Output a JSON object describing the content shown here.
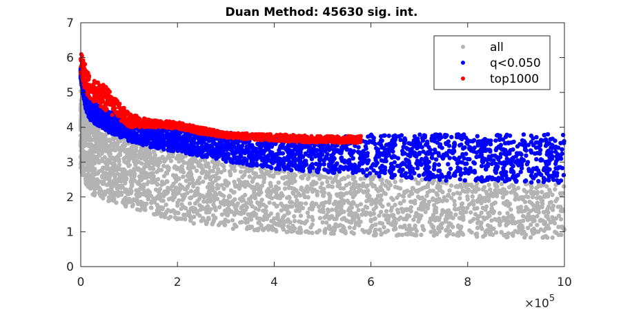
{
  "chart_data": {
    "type": "scatter",
    "title": "Duan Method: 45630 sig. int.",
    "xlabel": "",
    "ylabel": "",
    "xlim": [
      0,
      1000000
    ],
    "ylim": [
      0,
      7
    ],
    "x_ticks": [
      0,
      200000,
      400000,
      600000,
      800000,
      1000000
    ],
    "x_tick_labels": [
      "0",
      "2",
      "4",
      "6",
      "8",
      "10"
    ],
    "x_exponent_label": "×10",
    "x_exponent_power": "5",
    "y_ticks": [
      0,
      1,
      2,
      3,
      4,
      5,
      6,
      7
    ],
    "y_tick_labels": [
      "0",
      "1",
      "2",
      "3",
      "4",
      "5",
      "6",
      "7"
    ],
    "grid": false,
    "legend_position": "top-right",
    "series": [
      {
        "name": "all",
        "color": "#b3b3b3",
        "band_x": [
          0,
          10000,
          20000,
          50000,
          100000,
          150000,
          200000,
          300000,
          400000,
          500000,
          600000,
          700000,
          800000,
          900000,
          1000000
        ],
        "band_low": [
          2.8,
          2.4,
          2.1,
          1.9,
          1.7,
          1.5,
          1.3,
          1.1,
          1.0,
          0.95,
          0.9,
          0.85,
          0.85,
          0.83,
          0.82
        ],
        "band_high": [
          5.4,
          4.5,
          4.2,
          3.9,
          3.6,
          3.4,
          3.3,
          3.0,
          2.8,
          2.7,
          2.6,
          2.5,
          2.45,
          2.42,
          2.4
        ]
      },
      {
        "name": "q<0.050",
        "color": "#0000ff",
        "band_x": [
          0,
          10000,
          20000,
          50000,
          100000,
          150000,
          200000,
          300000,
          400000,
          500000,
          600000,
          700000,
          800000,
          900000,
          1000000
        ],
        "band_low": [
          5.4,
          4.5,
          4.2,
          3.9,
          3.6,
          3.4,
          3.3,
          3.0,
          2.8,
          2.7,
          2.6,
          2.5,
          2.45,
          2.42,
          2.4
        ],
        "band_high": [
          5.7,
          5.1,
          4.8,
          4.5,
          4.2,
          4.0,
          3.95,
          3.85,
          3.75,
          3.7,
          3.8,
          3.8,
          3.8,
          3.8,
          3.8
        ]
      },
      {
        "name": "top1000",
        "color": "#ff0000",
        "band_x": [
          0,
          10000,
          20000,
          50000,
          80000,
          100000,
          150000,
          200000,
          250000,
          300000,
          400000,
          500000,
          570000,
          580000
        ],
        "band_low": [
          5.5,
          5.0,
          4.8,
          4.5,
          4.2,
          4.0,
          4.0,
          3.95,
          3.8,
          3.7,
          3.6,
          3.55,
          3.55,
          3.55
        ],
        "band_high": [
          6.15,
          5.8,
          5.4,
          5.2,
          4.7,
          4.4,
          4.2,
          4.15,
          4.0,
          3.85,
          3.8,
          3.75,
          3.75,
          3.75
        ]
      }
    ]
  }
}
